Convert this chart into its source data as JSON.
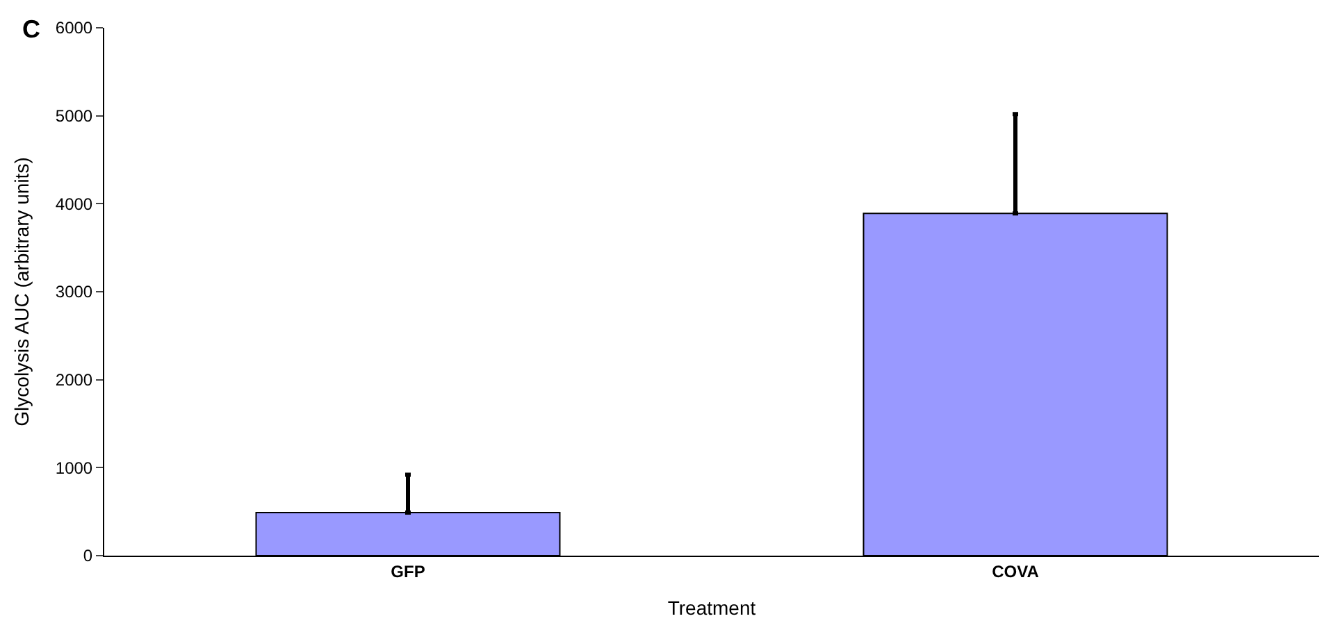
{
  "chart_data": {
    "type": "bar",
    "categories": [
      "GFP",
      "COVA"
    ],
    "values": [
      490,
      3890
    ],
    "errors": [
      [
        490,
        920
      ],
      [
        3890,
        5020
      ]
    ],
    "color": "#9999ff",
    "xlabel": "Treatment",
    "ylabel": "Glycolysis AUC (arbitrary units)",
    "ylim": [
      0,
      6000
    ],
    "yticks": [
      0,
      1000,
      2000,
      3000,
      4000,
      5000,
      6000
    ],
    "legend": false,
    "annotations": [
      "C"
    ]
  }
}
